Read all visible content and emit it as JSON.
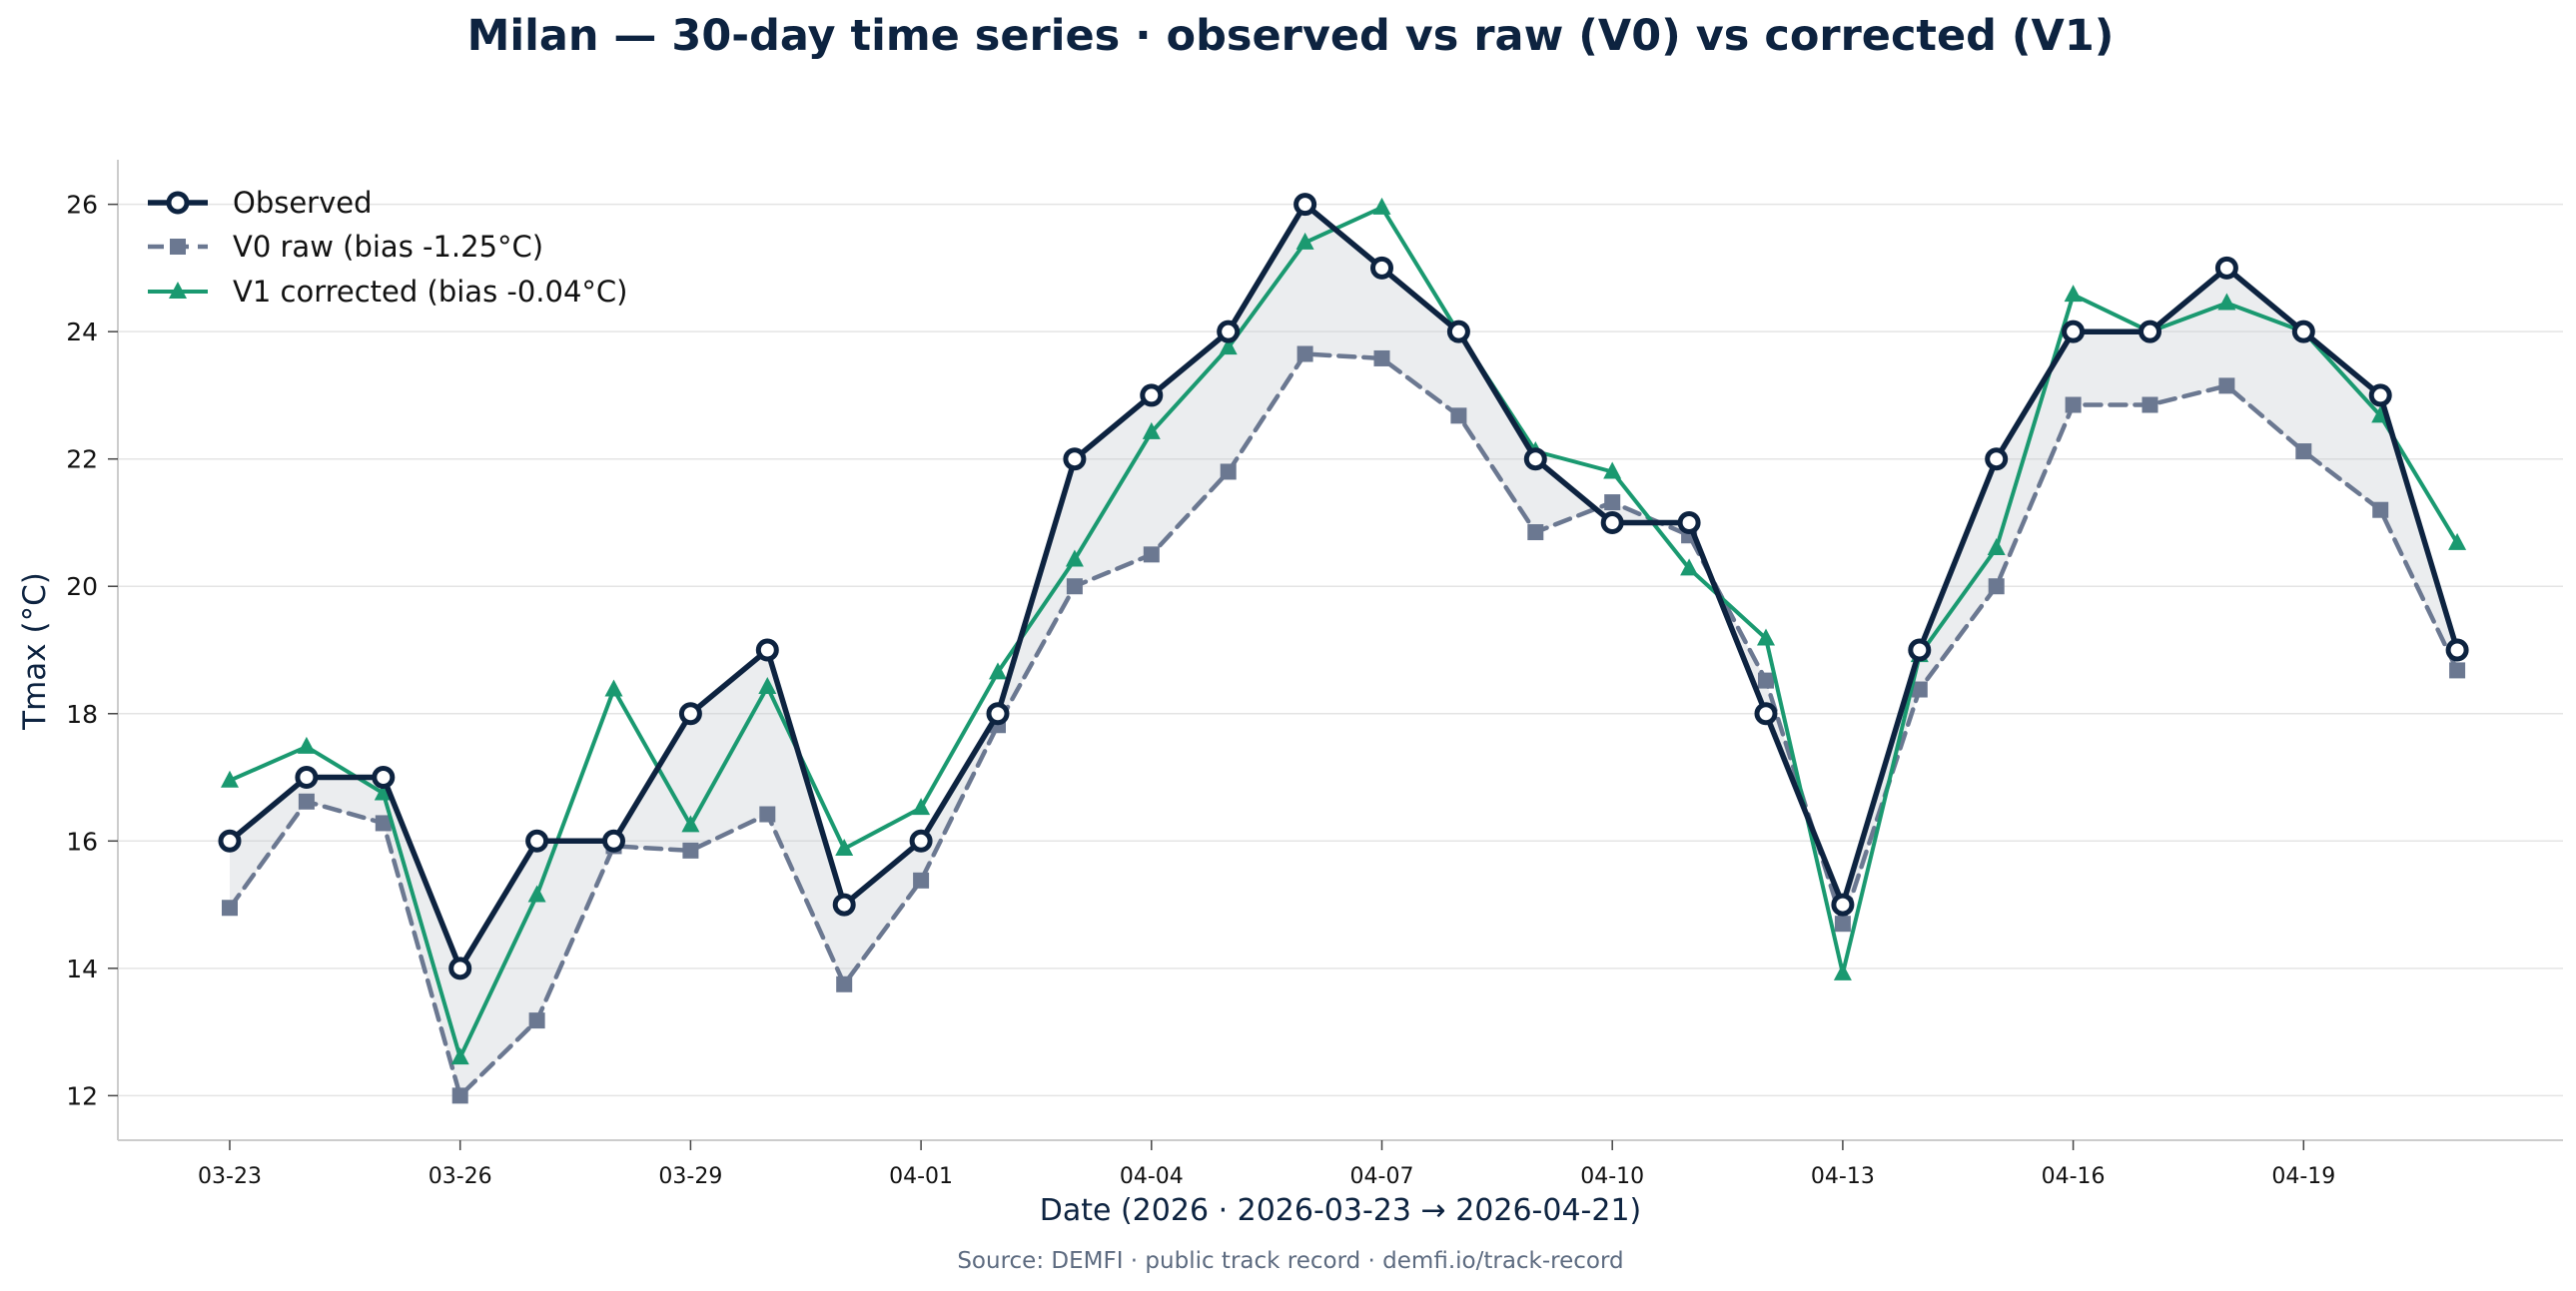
{
  "chart_data": {
    "type": "line",
    "title": "Milan — 30-day time series  ·  observed vs raw (V0) vs corrected (V1)",
    "xlabel": "Date (2026 · 2026-03-23 → 2026-04-21)",
    "ylabel": "Tmax (°C)",
    "source": "Source: DEMFI · public track record · demfi.io/track-record",
    "ylim": [
      11.3,
      26.7
    ],
    "yticks": [
      12,
      14,
      16,
      18,
      20,
      22,
      24,
      26
    ],
    "ytick_labels": [
      "12",
      "14",
      "16",
      "18",
      "20",
      "22",
      "24",
      "26"
    ],
    "dates": [
      "03-23",
      "03-24",
      "03-25",
      "03-26",
      "03-27",
      "03-28",
      "03-29",
      "03-30",
      "03-31",
      "04-01",
      "04-02",
      "04-03",
      "04-04",
      "04-05",
      "04-06",
      "04-07",
      "04-08",
      "04-09",
      "04-10",
      "04-11",
      "04-12",
      "04-13",
      "04-14",
      "04-15",
      "04-16",
      "04-17",
      "04-18",
      "04-19",
      "04-20",
      "04-21"
    ],
    "xtick_labels": [
      "03-23",
      "03-26",
      "03-29",
      "04-01",
      "04-04",
      "04-07",
      "04-10",
      "04-13",
      "04-16",
      "04-19"
    ],
    "xtick_indices": [
      0,
      3,
      6,
      9,
      12,
      15,
      18,
      21,
      24,
      27
    ],
    "grid": "horizontal",
    "legend_position": "top-left",
    "series": [
      {
        "name": "Observed",
        "color": "#0d2340",
        "marker": "circle",
        "style": "solid",
        "values": [
          16,
          17,
          17,
          14,
          16,
          16,
          18,
          19,
          15,
          16,
          18,
          22,
          23,
          24,
          26,
          25,
          24,
          22,
          21,
          21,
          18,
          15,
          19,
          22,
          24,
          24,
          25,
          24,
          23,
          19
        ]
      },
      {
        "name": "V0 raw  (bias -1.25°C)",
        "color": "#6b7891",
        "marker": "square",
        "style": "dashed",
        "values": [
          14.95,
          16.62,
          16.28,
          12.0,
          13.18,
          15.92,
          15.85,
          16.42,
          13.75,
          15.38,
          17.82,
          20.0,
          20.5,
          21.8,
          23.65,
          23.58,
          22.68,
          20.85,
          21.32,
          20.8,
          18.52,
          14.7,
          18.38,
          20.0,
          22.85,
          22.85,
          23.15,
          22.12,
          21.2,
          18.68
        ]
      },
      {
        "name": "V1 corrected  (bias -0.04°C)",
        "color": "#1a9970",
        "marker": "triangle",
        "style": "solid",
        "values": [
          16.95,
          17.48,
          16.75,
          12.6,
          15.15,
          18.38,
          16.25,
          18.42,
          15.88,
          16.52,
          18.65,
          20.42,
          22.42,
          23.75,
          25.4,
          25.95,
          23.98,
          22.12,
          21.8,
          20.28,
          19.18,
          13.92,
          18.92,
          20.6,
          24.58,
          24.0,
          24.45,
          24.0,
          22.68,
          20.68
        ]
      }
    ]
  }
}
